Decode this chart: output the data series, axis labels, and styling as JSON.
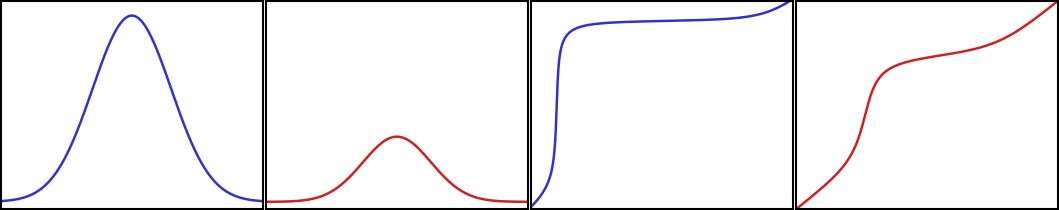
{
  "blue_gaussian_mu": 0.5,
  "blue_gaussian_sigma": 0.15,
  "blue_gaussian_amplitude": 1.0,
  "red_gaussian_mu": 0.5,
  "red_gaussian_sigma": 0.13,
  "red_gaussian_amplitude": 0.35,
  "blue_color": "#3333cc",
  "red_color": "#cc2222",
  "line_width": 1.8,
  "background_color": "#ffffff",
  "border_color": "#000000",
  "n_points": 1000,
  "blue_scale": 2.5,
  "red_scale": 1.2
}
